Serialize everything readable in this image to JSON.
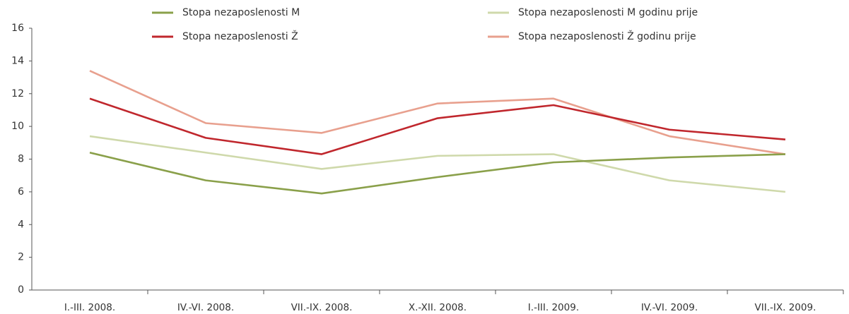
{
  "chart_data": {
    "type": "line",
    "categories": [
      "I.-III. 2008.",
      "IV.-VI. 2008.",
      "VII.-IX. 2008.",
      "X.-XII. 2008.",
      "I.-III. 2009.",
      "IV.-VI. 2009.",
      "VII.-IX. 2009."
    ],
    "series": [
      {
        "name": "Stopa nezaposlenosti M",
        "color": "#8aa04a",
        "values": [
          8.4,
          6.7,
          5.9,
          6.9,
          7.8,
          8.1,
          8.3
        ]
      },
      {
        "name": "Stopa nezaposlenosti Ž",
        "color": "#c0272d",
        "values": [
          11.7,
          9.3,
          8.3,
          10.5,
          11.3,
          9.8,
          9.2
        ]
      },
      {
        "name": "Stopa nezaposlenosti M godinu prije",
        "color": "#cfd9ab",
        "values": [
          9.4,
          8.4,
          7.4,
          8.2,
          8.3,
          6.7,
          6.0
        ]
      },
      {
        "name": "Stopa nezaposlenosti Ž godinu prije",
        "color": "#e8a08e",
        "values": [
          13.4,
          10.2,
          9.6,
          11.4,
          11.7,
          9.4,
          8.3
        ]
      }
    ],
    "ylim": [
      0,
      16
    ],
    "yticks": [
      0,
      2,
      4,
      6,
      8,
      10,
      12,
      14,
      16
    ],
    "grid": false
  }
}
